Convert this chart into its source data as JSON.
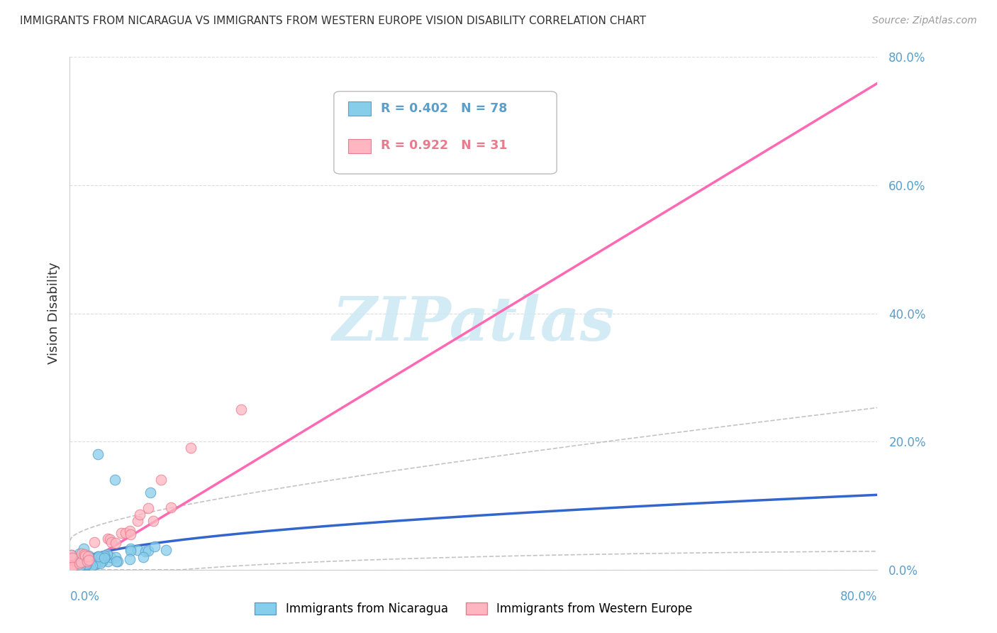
{
  "title": "IMMIGRANTS FROM NICARAGUA VS IMMIGRANTS FROM WESTERN EUROPE VISION DISABILITY CORRELATION CHART",
  "source": "Source: ZipAtlas.com",
  "ylabel": "Vision Disability",
  "ytick_values": [
    0.0,
    0.2,
    0.4,
    0.6,
    0.8
  ],
  "ytick_labels": [
    "0.0%",
    "20.0%",
    "40.0%",
    "60.0%",
    "80.0%"
  ],
  "xlim": [
    0.0,
    0.8
  ],
  "ylim": [
    0.0,
    0.8
  ],
  "legend1_label": "R = 0.402   N = 78",
  "legend2_label": "R = 0.922   N = 31",
  "color_nicaragua_fill": "#87CEEB",
  "color_nicaragua_edge": "#5B9EC9",
  "color_nicaragua_line": "#3366CC",
  "color_we_fill": "#FFB6C1",
  "color_we_edge": "#E87C8C",
  "color_we_line": "#FF69B4",
  "color_ci": "#aaaaaa",
  "color_ytick": "#5B9EC9",
  "color_xtick": "#5B9EC9",
  "watermark_text": "ZIPatlas",
  "watermark_color": "#cce8f4",
  "label_nicaragua": "Immigrants from Nicaragua",
  "label_western_europe": "Immigrants from Western Europe",
  "grid_color": "#dddddd",
  "background_color": "#ffffff",
  "title_color": "#333333",
  "source_color": "#999999"
}
